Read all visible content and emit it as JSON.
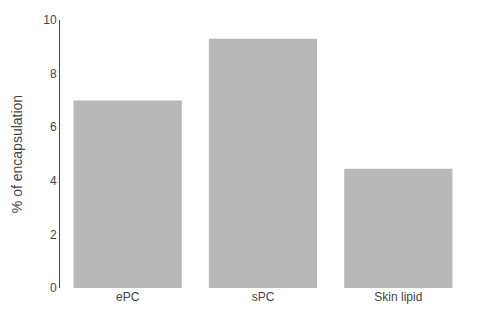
{
  "chart_data": {
    "type": "bar",
    "categories": [
      "ePC",
      "sPC",
      "Skin lipid"
    ],
    "values": [
      7.0,
      9.3,
      4.45
    ],
    "color": "#b8b8b8",
    "ylabel": "% of encapsulation",
    "ylim": [
      0,
      10
    ],
    "yticks": [
      0,
      2,
      4,
      6,
      8,
      10
    ],
    "grid": false
  }
}
